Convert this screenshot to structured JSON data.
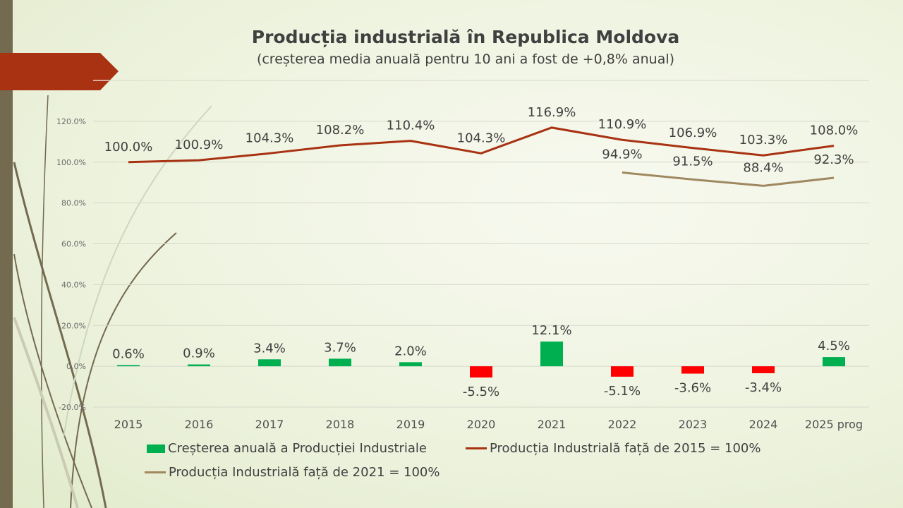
{
  "chart_data": {
    "type": "bar+line",
    "title": "Producția industrială în Republica Moldova",
    "subtitle": "(creșterea media anuală pentru 10 ani a fost de +0,8% anual)",
    "categories": [
      "2015",
      "2016",
      "2017",
      "2018",
      "2019",
      "2020",
      "2021",
      "2022",
      "2023",
      "2024",
      "2025 prog"
    ],
    "ylim": [
      -20,
      140
    ],
    "yticks": [
      "-20.0%",
      "0.0%",
      "20.0%",
      "40.0%",
      "60.0%",
      "80.0%",
      "100.0%",
      "120.0%",
      "140.0%"
    ],
    "grid": true,
    "legend_position": "bottom",
    "series": [
      {
        "name": "Creșterea anuală a Producției Industriale",
        "type": "bar",
        "values": [
          0.6,
          0.9,
          3.4,
          3.7,
          2.0,
          -5.5,
          12.1,
          -5.1,
          -3.6,
          -3.4,
          4.5
        ],
        "labels": [
          "0.6%",
          "0.9%",
          "3.4%",
          "3.7%",
          "2.0%",
          "-5.5%",
          "12.1%",
          "-5.1%",
          "-3.6%",
          "-3.4%",
          "4.5%"
        ],
        "color_positive": "#00b050",
        "color_negative": "#ff0000"
      },
      {
        "name": "Producția Industrială față de 2015 = 100%",
        "type": "line",
        "values": [
          100.0,
          100.9,
          104.3,
          108.2,
          110.4,
          104.3,
          116.9,
          110.9,
          106.9,
          103.3,
          108.0
        ],
        "labels": [
          "100.0%",
          "100.9%",
          "104.3%",
          "108.2%",
          "110.4%",
          "104.3%",
          "116.9%",
          "110.9%",
          "106.9%",
          "103.3%",
          "108.0%"
        ],
        "color": "#a83211"
      },
      {
        "name": "Producția Industrială față de 2021 = 100%",
        "type": "line",
        "values": [
          null,
          null,
          null,
          null,
          null,
          null,
          null,
          94.9,
          91.5,
          88.4,
          92.3
        ],
        "labels": [
          null,
          null,
          null,
          null,
          null,
          null,
          null,
          "94.9%",
          "91.5%",
          "88.4%",
          "92.3%"
        ],
        "color": "#a08860"
      }
    ]
  }
}
